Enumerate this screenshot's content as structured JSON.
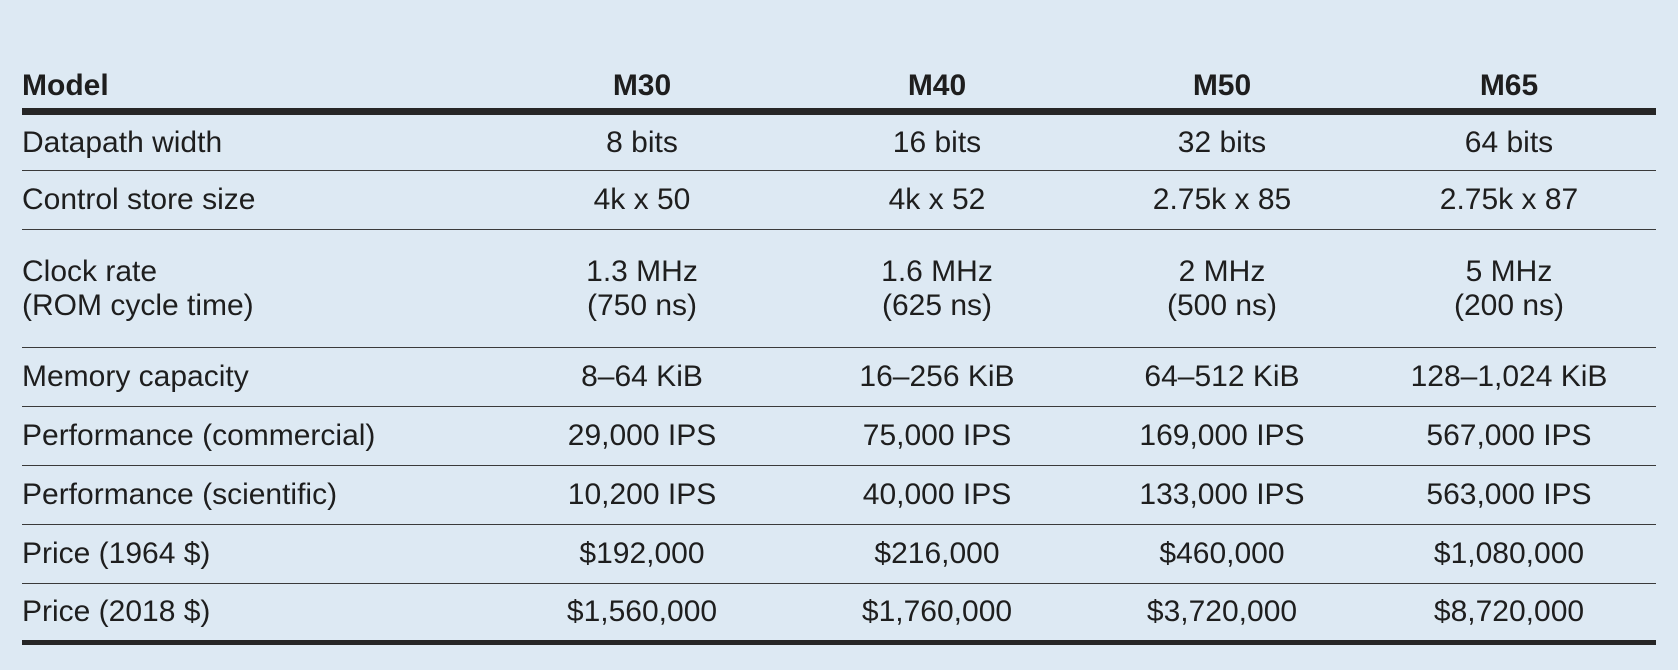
{
  "table": {
    "headers": [
      "Model",
      "M30",
      "M40",
      "M50",
      "M65"
    ],
    "rows": [
      {
        "label": [
          "Datapath width"
        ],
        "values": [
          [
            "8 bits"
          ],
          [
            "16 bits"
          ],
          [
            "32 bits"
          ],
          [
            "64 bits"
          ]
        ]
      },
      {
        "label": [
          "Control store size"
        ],
        "values": [
          [
            "4k x 50"
          ],
          [
            "4k x 52"
          ],
          [
            "2.75k x 85"
          ],
          [
            "2.75k x 87"
          ]
        ]
      },
      {
        "label": [
          "Clock rate",
          "(ROM cycle time)"
        ],
        "values": [
          [
            "1.3 MHz",
            "(750 ns)"
          ],
          [
            "1.6 MHz",
            "(625 ns)"
          ],
          [
            "2 MHz",
            "(500 ns)"
          ],
          [
            "5 MHz",
            "(200 ns)"
          ]
        ]
      },
      {
        "label": [
          "Memory capacity"
        ],
        "values": [
          [
            "8–64 KiB"
          ],
          [
            "16–256 KiB"
          ],
          [
            "64–512 KiB"
          ],
          [
            "128–1,024 KiB"
          ]
        ]
      },
      {
        "label": [
          "Performance (commercial)"
        ],
        "values": [
          [
            "29,000 IPS"
          ],
          [
            "75,000 IPS"
          ],
          [
            "169,000 IPS"
          ],
          [
            "567,000 IPS"
          ]
        ]
      },
      {
        "label": [
          "Performance (scientific)"
        ],
        "values": [
          [
            "10,200 IPS"
          ],
          [
            "40,000 IPS"
          ],
          [
            "133,000 IPS"
          ],
          [
            "563,000 IPS"
          ]
        ]
      },
      {
        "label": [
          "Price (1964 $)"
        ],
        "values": [
          [
            "$192,000"
          ],
          [
            "$216,000"
          ],
          [
            "$460,000"
          ],
          [
            "$1,080,000"
          ]
        ]
      },
      {
        "label": [
          "Price (2018 $)"
        ],
        "values": [
          [
            "$1,560,000"
          ],
          [
            "$1,760,000"
          ],
          [
            "$3,720,000"
          ],
          [
            "$8,720,000"
          ]
        ]
      }
    ]
  }
}
